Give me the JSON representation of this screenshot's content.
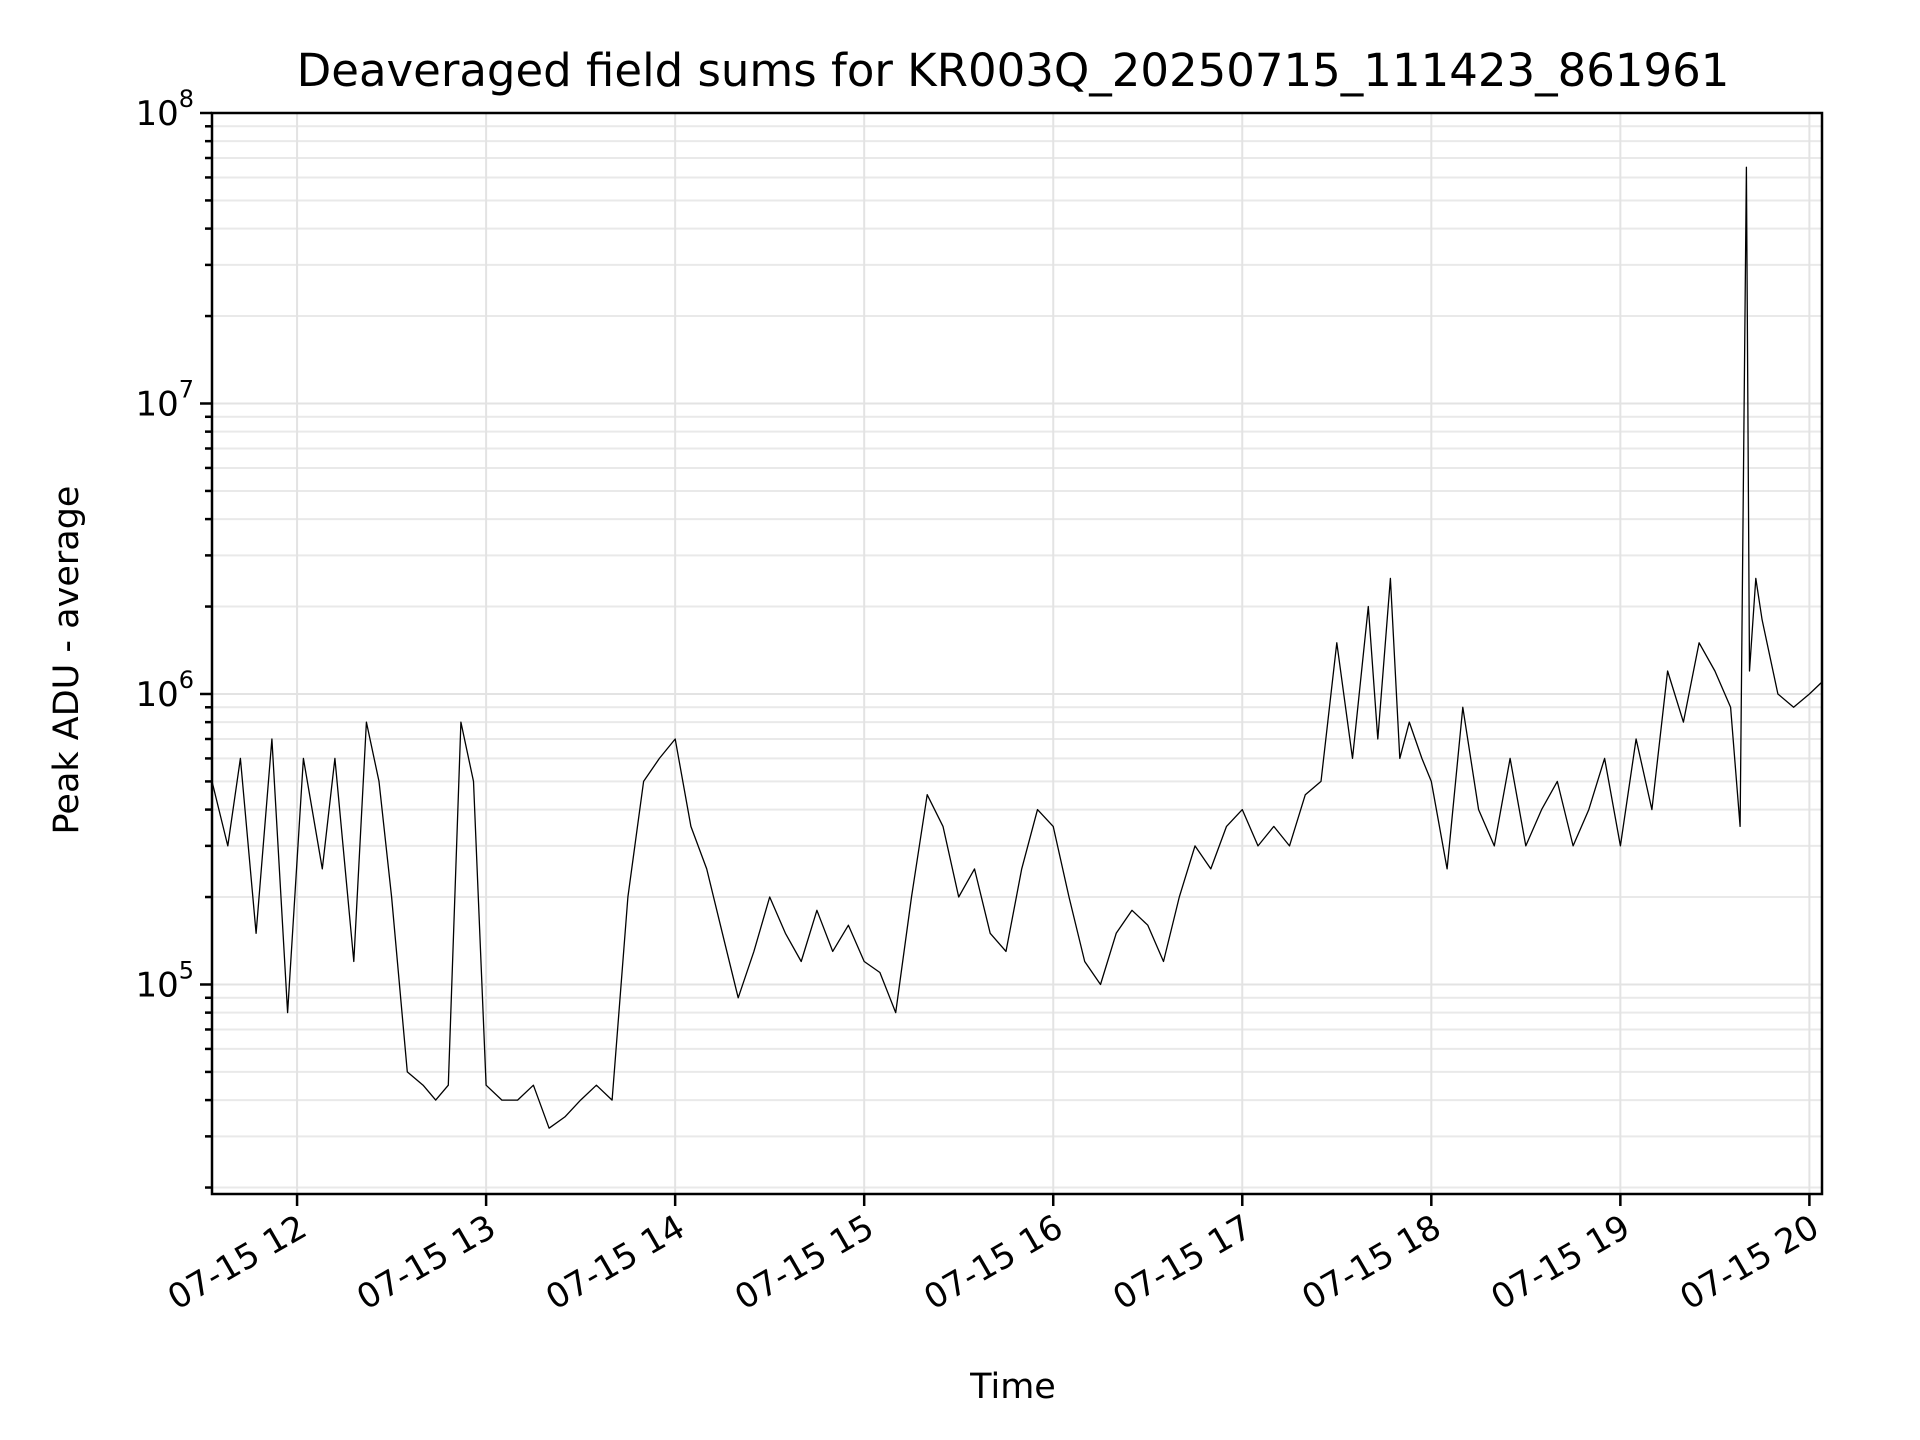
{
  "chart_data": {
    "type": "line",
    "title": "Deaveraged field sums for KR003Q_20250715_111423_861961",
    "xlabel": "Time",
    "ylabel": "Peak ADU - average",
    "yscale": "log",
    "ylim": [
      19000,
      100000000
    ],
    "xlim": [
      "2025-07-15 11:33",
      "2025-07-15 20:04"
    ],
    "grid": true,
    "legend": "none",
    "line_color": "#000000",
    "x_ticks": [
      {
        "t": "2025-07-15 12:00",
        "label": "07-15 12"
      },
      {
        "t": "2025-07-15 13:00",
        "label": "07-15 13"
      },
      {
        "t": "2025-07-15 14:00",
        "label": "07-15 14"
      },
      {
        "t": "2025-07-15 15:00",
        "label": "07-15 15"
      },
      {
        "t": "2025-07-15 16:00",
        "label": "07-15 16"
      },
      {
        "t": "2025-07-15 17:00",
        "label": "07-15 17"
      },
      {
        "t": "2025-07-15 18:00",
        "label": "07-15 18"
      },
      {
        "t": "2025-07-15 19:00",
        "label": "07-15 19"
      },
      {
        "t": "2025-07-15 20:00",
        "label": "07-15 20"
      }
    ],
    "y_ticks": [
      {
        "value": 100000,
        "base": "10",
        "exp": "5"
      },
      {
        "value": 1000000,
        "base": "10",
        "exp": "6"
      },
      {
        "value": 10000000,
        "base": "10",
        "exp": "7"
      },
      {
        "value": 100000000,
        "base": "10",
        "exp": "8"
      }
    ],
    "series": [
      {
        "x": [
          "2025-07-15 11:33",
          "2025-07-15 11:38",
          "2025-07-15 11:42",
          "2025-07-15 11:47",
          "2025-07-15 11:52",
          "2025-07-15 11:57",
          "2025-07-15 12:02",
          "2025-07-15 12:08",
          "2025-07-15 12:12",
          "2025-07-15 12:18",
          "2025-07-15 12:22",
          "2025-07-15 12:26",
          "2025-07-15 12:30",
          "2025-07-15 12:35",
          "2025-07-15 12:40",
          "2025-07-15 12:44",
          "2025-07-15 12:48",
          "2025-07-15 12:52",
          "2025-07-15 12:56",
          "2025-07-15 13:00",
          "2025-07-15 13:05",
          "2025-07-15 13:10",
          "2025-07-15 13:15",
          "2025-07-15 13:20",
          "2025-07-15 13:25",
          "2025-07-15 13:30",
          "2025-07-15 13:35",
          "2025-07-15 13:40",
          "2025-07-15 13:45",
          "2025-07-15 13:50",
          "2025-07-15 13:55",
          "2025-07-15 14:00",
          "2025-07-15 14:05",
          "2025-07-15 14:10",
          "2025-07-15 14:15",
          "2025-07-15 14:20",
          "2025-07-15 14:25",
          "2025-07-15 14:30",
          "2025-07-15 14:35",
          "2025-07-15 14:40",
          "2025-07-15 14:45",
          "2025-07-15 14:50",
          "2025-07-15 14:55",
          "2025-07-15 15:00",
          "2025-07-15 15:05",
          "2025-07-15 15:10",
          "2025-07-15 15:15",
          "2025-07-15 15:20",
          "2025-07-15 15:25",
          "2025-07-15 15:30",
          "2025-07-15 15:35",
          "2025-07-15 15:40",
          "2025-07-15 15:45",
          "2025-07-15 15:50",
          "2025-07-15 15:55",
          "2025-07-15 16:00",
          "2025-07-15 16:05",
          "2025-07-15 16:10",
          "2025-07-15 16:15",
          "2025-07-15 16:20",
          "2025-07-15 16:25",
          "2025-07-15 16:30",
          "2025-07-15 16:35",
          "2025-07-15 16:40",
          "2025-07-15 16:45",
          "2025-07-15 16:50",
          "2025-07-15 16:55",
          "2025-07-15 17:00",
          "2025-07-15 17:05",
          "2025-07-15 17:10",
          "2025-07-15 17:15",
          "2025-07-15 17:20",
          "2025-07-15 17:25",
          "2025-07-15 17:30",
          "2025-07-15 17:35",
          "2025-07-15 17:40",
          "2025-07-15 17:43",
          "2025-07-15 17:47",
          "2025-07-15 17:50",
          "2025-07-15 17:53",
          "2025-07-15 17:57",
          "2025-07-15 18:00",
          "2025-07-15 18:05",
          "2025-07-15 18:10",
          "2025-07-15 18:15",
          "2025-07-15 18:20",
          "2025-07-15 18:25",
          "2025-07-15 18:30",
          "2025-07-15 18:35",
          "2025-07-15 18:40",
          "2025-07-15 18:45",
          "2025-07-15 18:50",
          "2025-07-15 18:55",
          "2025-07-15 19:00",
          "2025-07-15 19:05",
          "2025-07-15 19:10",
          "2025-07-15 19:15",
          "2025-07-15 19:20",
          "2025-07-15 19:25",
          "2025-07-15 19:30",
          "2025-07-15 19:35",
          "2025-07-15 19:38",
          "2025-07-15 19:40",
          "2025-07-15 19:41",
          "2025-07-15 19:43",
          "2025-07-15 19:45",
          "2025-07-15 19:50",
          "2025-07-15 19:55",
          "2025-07-15 20:00",
          "2025-07-15 20:04"
        ],
        "y": [
          500000,
          300000,
          600000,
          150000,
          700000,
          80000,
          600000,
          250000,
          600000,
          120000,
          800000,
          500000,
          200000,
          50000,
          45000,
          40000,
          45000,
          800000,
          500000,
          45000,
          40000,
          40000,
          45000,
          32000,
          35000,
          40000,
          45000,
          40000,
          200000,
          500000,
          600000,
          700000,
          350000,
          250000,
          150000,
          90000,
          130000,
          200000,
          150000,
          120000,
          180000,
          130000,
          160000,
          120000,
          110000,
          80000,
          200000,
          450000,
          350000,
          200000,
          250000,
          150000,
          130000,
          250000,
          400000,
          350000,
          200000,
          120000,
          100000,
          150000,
          180000,
          160000,
          120000,
          200000,
          300000,
          250000,
          350000,
          400000,
          300000,
          350000,
          300000,
          450000,
          500000,
          1500000,
          600000,
          2000000,
          700000,
          2500000,
          600000,
          800000,
          600000,
          500000,
          250000,
          900000,
          400000,
          300000,
          600000,
          300000,
          400000,
          500000,
          300000,
          400000,
          600000,
          300000,
          700000,
          400000,
          1200000,
          800000,
          1500000,
          1200000,
          900000,
          350000,
          65000000,
          1200000,
          2500000,
          1800000,
          1000000,
          900000,
          1000000,
          1100000
        ]
      }
    ]
  }
}
